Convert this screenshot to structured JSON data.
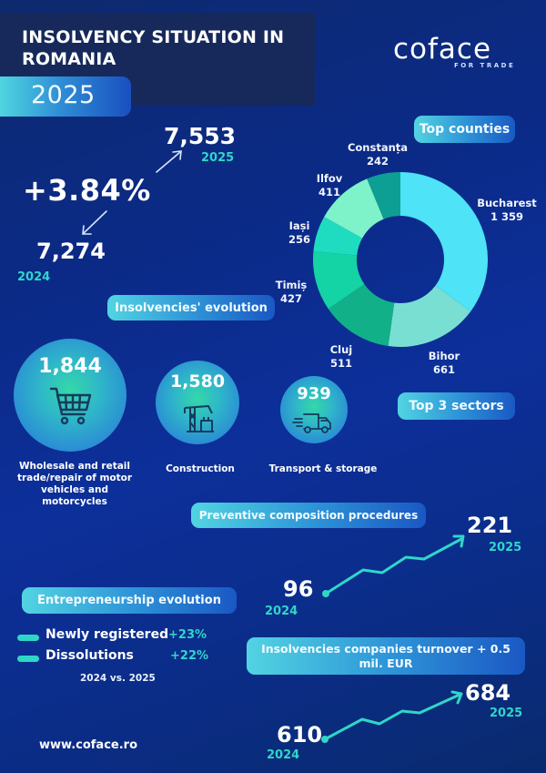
{
  "header": {
    "title": "INSOLVENCY SITUATION IN ROMANIA",
    "year": "2025",
    "logo": "coface",
    "logo_tagline": "FOR TRADE"
  },
  "insolvencies": {
    "label": "Insolvencies' evolution",
    "change": "+3.84%",
    "value_2025": "7,553",
    "year_2025": "2025",
    "value_2024": "7,274",
    "year_2024": "2024"
  },
  "counties": {
    "label": "Top counties",
    "items": [
      {
        "name": "Bucharest",
        "value": "1 359",
        "color": "#4ee3f6"
      },
      {
        "name": "Bihor",
        "value": "661",
        "color": "#79dfd3"
      },
      {
        "name": "Cluj",
        "value": "511",
        "color": "#12b089"
      },
      {
        "name": "Timiș",
        "value": "427",
        "color": "#14d3a5"
      },
      {
        "name": "Iași",
        "value": "256",
        "color": "#1fdcc0"
      },
      {
        "name": "Ilfov",
        "value": "411",
        "color": "#7ef3c9"
      },
      {
        "name": "Constanța",
        "value": "242",
        "color": "#0d9f94"
      }
    ]
  },
  "sectors": {
    "label": "Top 3 sectors",
    "items": [
      {
        "value": "1,844",
        "label": "Wholesale and retail trade/repair of motor vehicles and motorcycles",
        "icon": "shopping-cart-icon"
      },
      {
        "value": "1,580",
        "label": "Construction",
        "icon": "crane-icon"
      },
      {
        "value": "939",
        "label": "Transport & storage",
        "icon": "delivery-truck-icon"
      }
    ]
  },
  "preventive": {
    "label": "Preventive composition procedures",
    "value_2024": "96",
    "year_2024": "2024",
    "value_2025": "221",
    "year_2025": "2025"
  },
  "entrepreneurship": {
    "label": "Entrepreneurship evolution",
    "items": [
      {
        "label": "Newly registered",
        "value": "+23%"
      },
      {
        "label": "Dissolutions",
        "value": "+22%"
      }
    ],
    "period": "2024 vs. 2025"
  },
  "turnover": {
    "label": "Insolvencies companies turnover + 0.5 mil. EUR",
    "value_2024": "610",
    "year_2024": "2024",
    "value_2025": "684",
    "year_2025": "2025"
  },
  "footer": {
    "website": "www.coface.ro"
  },
  "chart_data": [
    {
      "type": "pie",
      "title": "Top counties",
      "categories": [
        "Bucharest",
        "Bihor",
        "Cluj",
        "Timiș",
        "Iași",
        "Ilfov",
        "Constanța"
      ],
      "values": [
        1359,
        661,
        511,
        427,
        256,
        411,
        242
      ],
      "donut": true
    },
    {
      "type": "line",
      "title": "Insolvencies' evolution",
      "categories": [
        "2024",
        "2025"
      ],
      "values": [
        7274,
        7553
      ],
      "annotations": [
        "+3.84%"
      ]
    },
    {
      "type": "bar",
      "title": "Top 3 sectors",
      "categories": [
        "Wholesale and retail trade/repair of motor vehicles and motorcycles",
        "Construction",
        "Transport & storage"
      ],
      "values": [
        1844,
        1580,
        939
      ]
    },
    {
      "type": "line",
      "title": "Preventive composition procedures",
      "categories": [
        "2024",
        "2025"
      ],
      "values": [
        96,
        221
      ]
    },
    {
      "type": "line",
      "title": "Insolvencies companies turnover + 0.5 mil. EUR",
      "categories": [
        "2024",
        "2025"
      ],
      "values": [
        610,
        684
      ]
    },
    {
      "type": "table",
      "title": "Entrepreneurship evolution",
      "categories": [
        "Newly registered",
        "Dissolutions"
      ],
      "values": [
        "+23%",
        "+22%"
      ],
      "xlabel": "2024 vs. 2025"
    }
  ]
}
